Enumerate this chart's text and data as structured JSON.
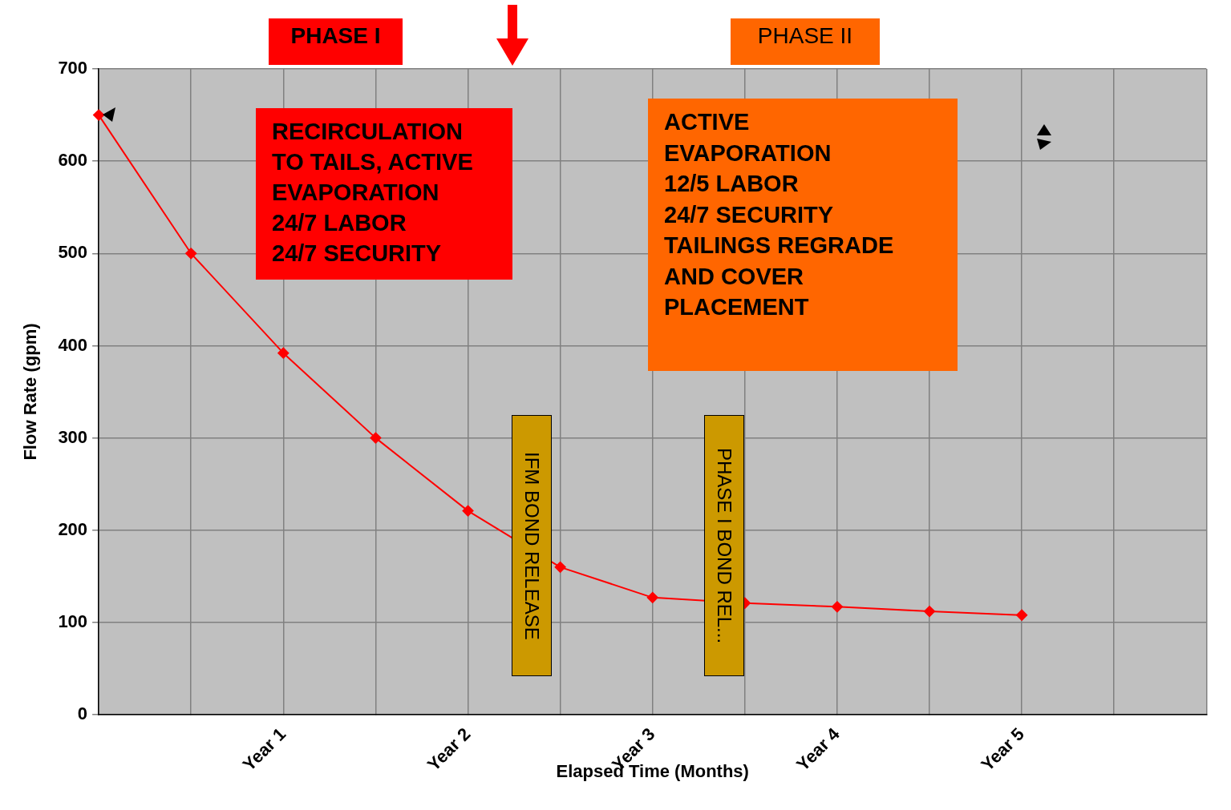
{
  "chart_data": {
    "type": "line",
    "xlabel": "Elapsed Time (Months)",
    "ylabel": "Flow Rate (gpm)",
    "categories": [
      null,
      null,
      "Year 1",
      null,
      "Year 2",
      null,
      "Year 3",
      null,
      "Year 4",
      null,
      "Year 5",
      null,
      null
    ],
    "series": [
      {
        "color": "#ff0000",
        "values": [
          650,
          500,
          392,
          300,
          221,
          160,
          127,
          121,
          117,
          112,
          108,
          null,
          null
        ]
      }
    ],
    "ylim": [
      0,
      700
    ],
    "yticks": [
      0,
      100,
      200,
      300,
      400,
      500,
      600,
      700
    ],
    "grid": true,
    "legend": false,
    "marker": "diamond",
    "line_style": "solid",
    "annotations": [
      "PHASE I",
      "PHASE II",
      "RECIRCULATION\nTO TAILS, ACTIVE\nEVAPORATION\n24/7 LABOR\n24/7 SECURITY",
      "ACTIVE\nEVAPORATION\n12/5 LABOR\n24/7 SECURITY\nTAILINGS REGRADE\nAND COVER\nPLACEMENT",
      "IFM BOND RELEASE",
      "PHASE I BOND REL..."
    ]
  }
}
